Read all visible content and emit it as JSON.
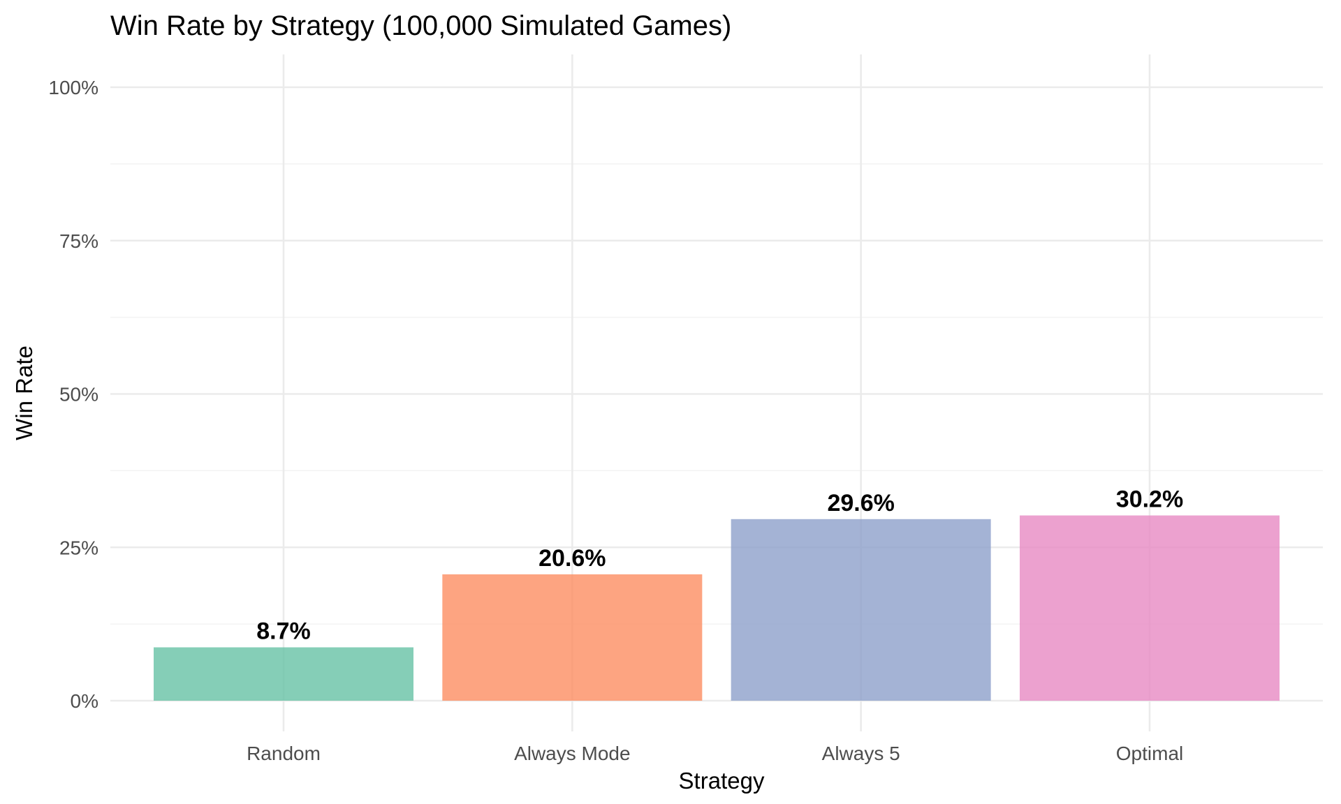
{
  "chart_data": {
    "type": "bar",
    "title": "Win Rate by Strategy (100,000 Simulated Games)",
    "xlabel": "Strategy",
    "ylabel": "Win Rate",
    "categories": [
      "Random",
      "Always Mode",
      "Always 5",
      "Optimal"
    ],
    "values": [
      0.087,
      0.206,
      0.296,
      0.302
    ],
    "data_labels": [
      "8.7%",
      "20.6%",
      "29.6%",
      "30.2%"
    ],
    "colors": [
      "#66c2a5",
      "#fc8d62",
      "#8da0cb",
      "#e78ac3"
    ],
    "ylim": [
      0,
      1
    ],
    "yticks": [
      0,
      0.25,
      0.5,
      0.75,
      1.0
    ],
    "ytick_labels": [
      "0%",
      "25%",
      "50%",
      "75%",
      "100%"
    ],
    "grid": true,
    "legend": "none"
  }
}
